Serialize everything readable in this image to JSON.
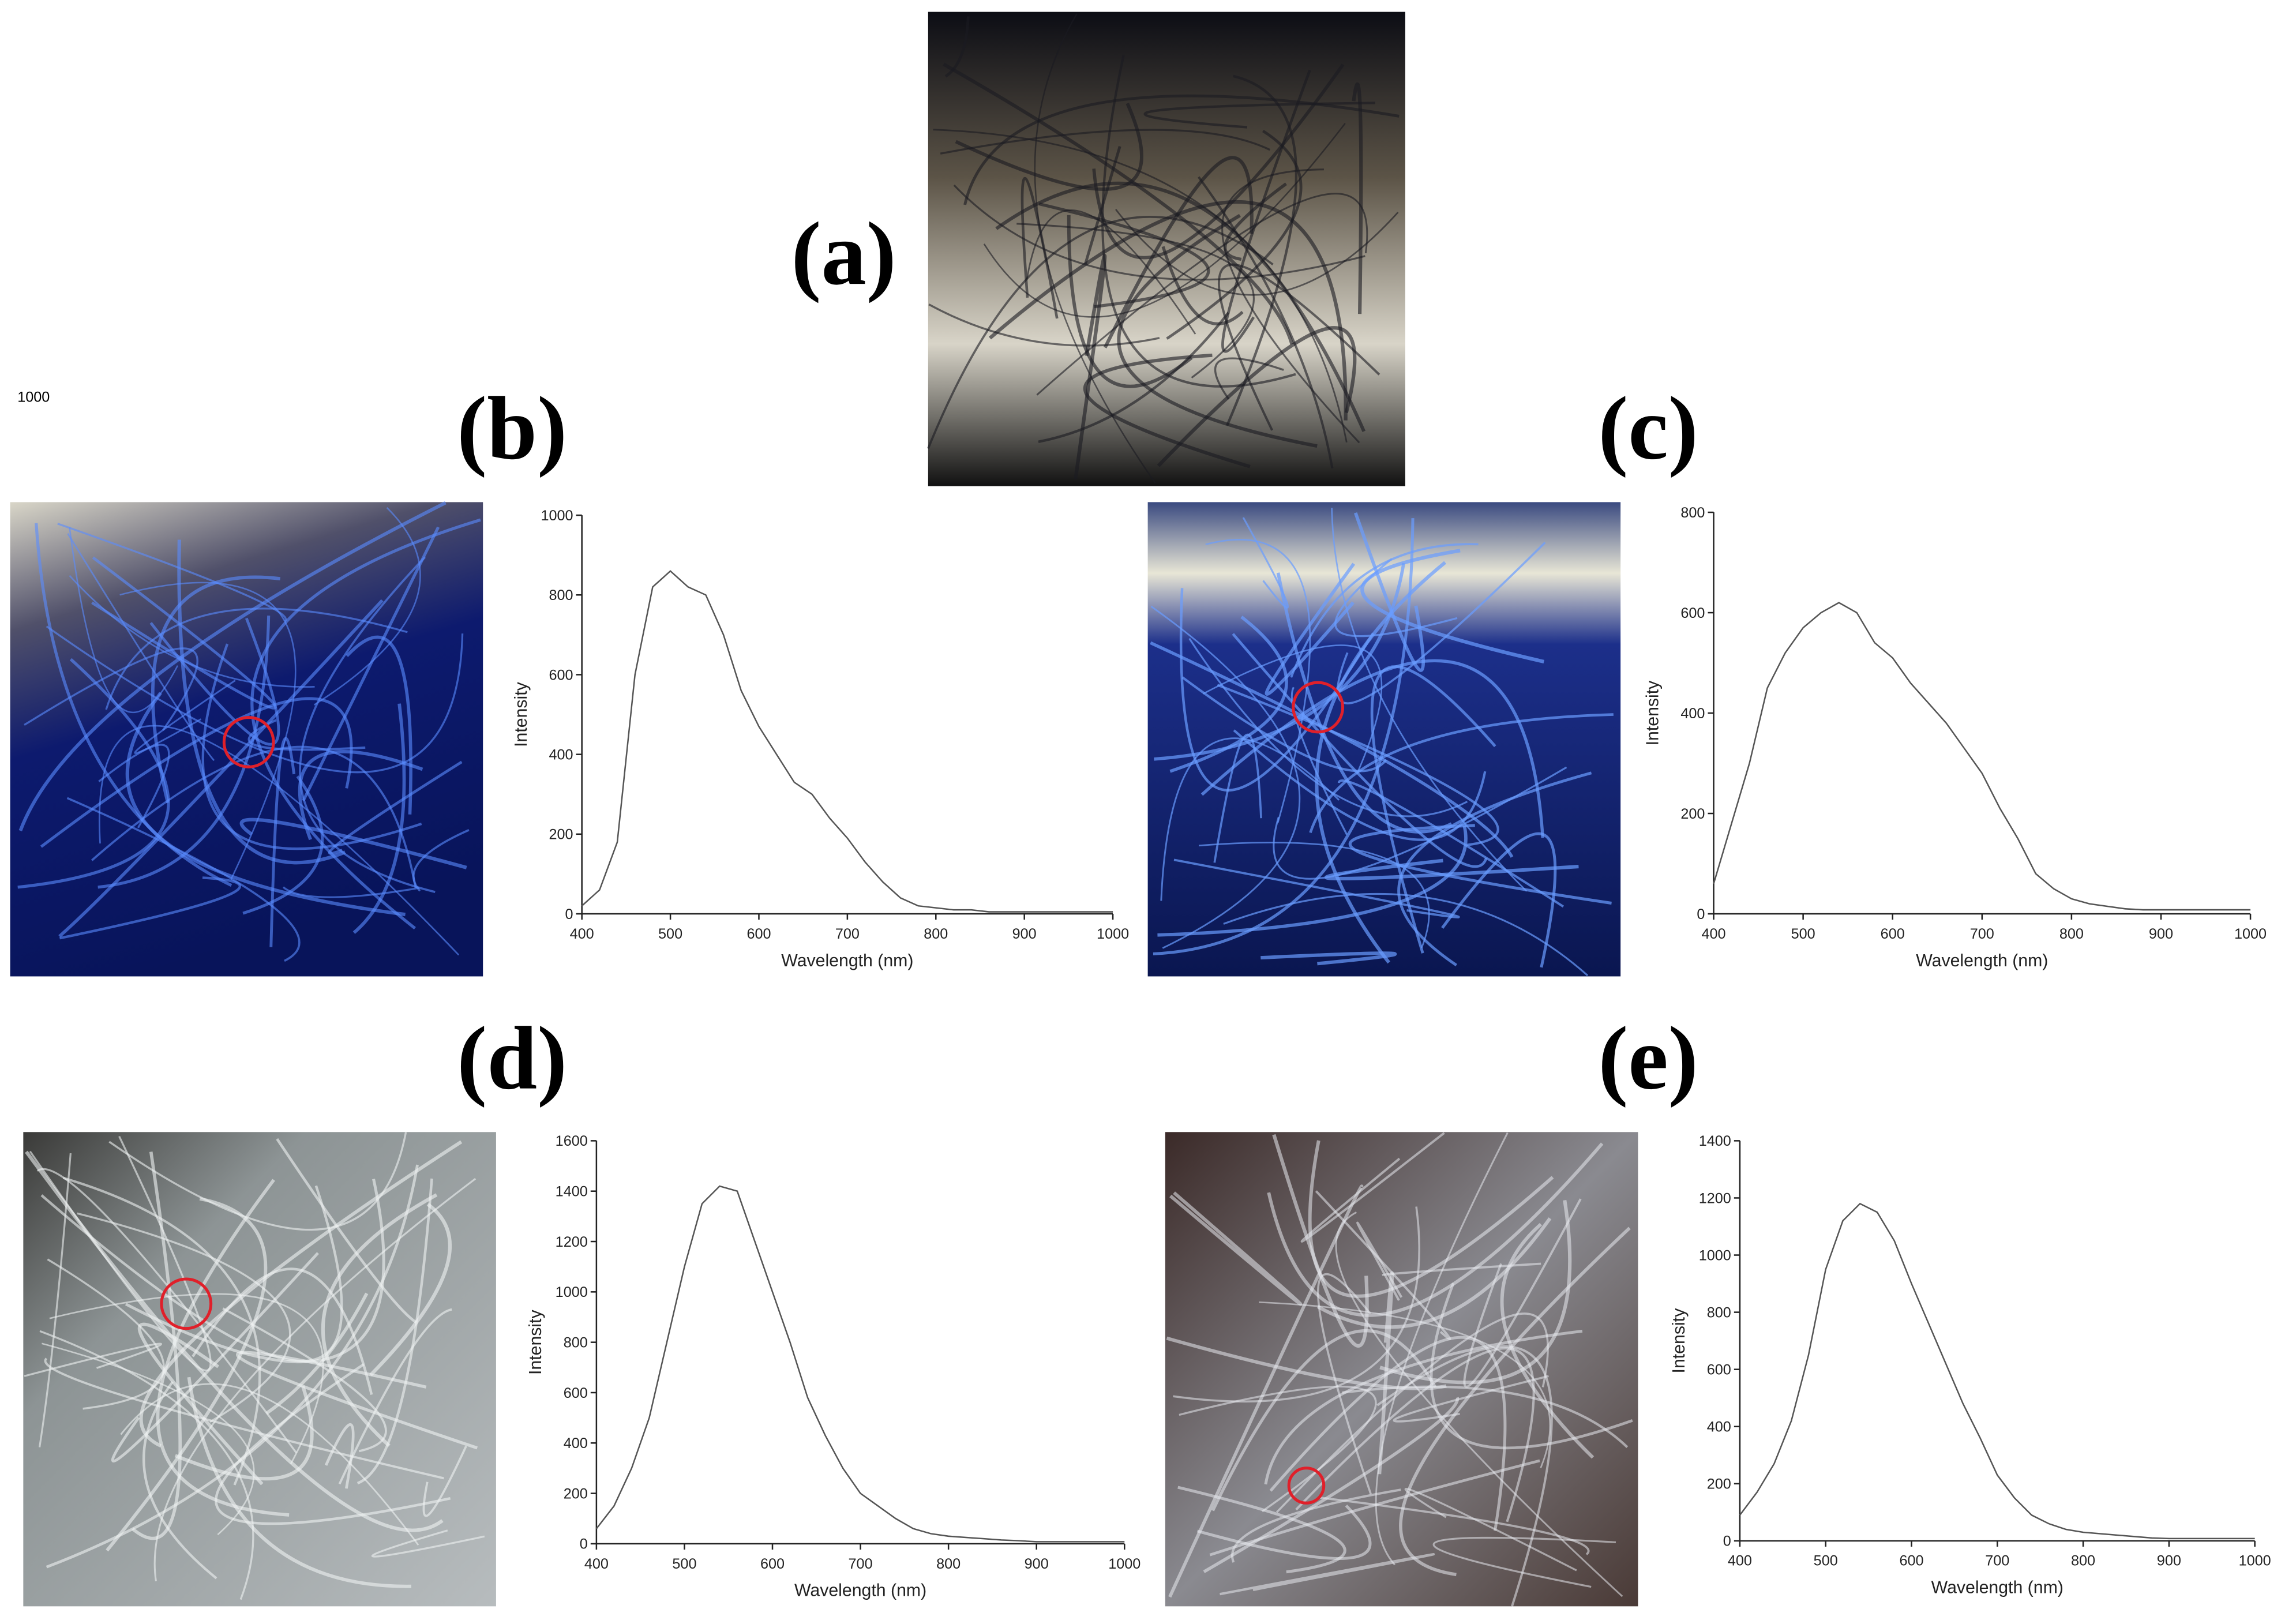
{
  "stray_text": "1000",
  "panel_labels": [
    "(a)",
    "(b)",
    "(c)",
    "(d)",
    "(e)"
  ],
  "chart_data": [
    {
      "type": "line",
      "xlabel": "Wavelength (nm)",
      "ylabel": "Intensity",
      "color": "#555555",
      "x": [
        400,
        420,
        440,
        460,
        480,
        500,
        520,
        540,
        560,
        580,
        600,
        620,
        640,
        660,
        680,
        700,
        720,
        740,
        760,
        780,
        800,
        820,
        840,
        860,
        880,
        900,
        920,
        940,
        960,
        980,
        1000
      ],
      "values": [
        20,
        60,
        180,
        600,
        820,
        860,
        820,
        800,
        700,
        560,
        470,
        400,
        330,
        300,
        240,
        190,
        130,
        80,
        40,
        20,
        15,
        10,
        10,
        5,
        5,
        5,
        5,
        5,
        5,
        5,
        5
      ],
      "xlim": [
        400,
        1000
      ],
      "ylim": [
        0,
        1000
      ],
      "xticks": [
        400,
        500,
        600,
        700,
        800,
        900,
        1000
      ],
      "yticks": [
        0,
        200,
        400,
        600,
        800,
        1000
      ]
    },
    {
      "type": "line",
      "xlabel": "Wavelength (nm)",
      "ylabel": "Intensity",
      "color": "#555555",
      "x": [
        400,
        420,
        440,
        460,
        480,
        500,
        520,
        540,
        560,
        580,
        600,
        620,
        640,
        660,
        680,
        700,
        720,
        740,
        760,
        780,
        800,
        820,
        840,
        860,
        880,
        900,
        920,
        940,
        960,
        980,
        1000
      ],
      "values": [
        60,
        180,
        300,
        450,
        520,
        570,
        600,
        620,
        600,
        540,
        510,
        460,
        420,
        380,
        330,
        280,
        210,
        150,
        80,
        50,
        30,
        20,
        15,
        10,
        8,
        8,
        8,
        8,
        8,
        8,
        8
      ],
      "xlim": [
        400,
        1000
      ],
      "ylim": [
        0,
        800
      ],
      "xticks": [
        400,
        500,
        600,
        700,
        800,
        900,
        1000
      ],
      "yticks": [
        0,
        200,
        400,
        600,
        800
      ]
    },
    {
      "type": "line",
      "xlabel": "Wavelength (nm)",
      "ylabel": "Intensity",
      "color": "#555555",
      "x": [
        400,
        420,
        440,
        460,
        480,
        500,
        520,
        540,
        560,
        580,
        600,
        620,
        640,
        660,
        680,
        700,
        720,
        740,
        760,
        780,
        800,
        820,
        840,
        860,
        880,
        900,
        920,
        940,
        960,
        980,
        1000
      ],
      "values": [
        60,
        150,
        300,
        500,
        800,
        1100,
        1350,
        1420,
        1400,
        1200,
        1000,
        800,
        580,
        430,
        300,
        200,
        150,
        100,
        60,
        40,
        30,
        25,
        20,
        15,
        12,
        8,
        8,
        8,
        8,
        8,
        8
      ],
      "xlim": [
        400,
        1000
      ],
      "ylim": [
        0,
        1600
      ],
      "xticks": [
        400,
        500,
        600,
        700,
        800,
        900,
        1000
      ],
      "yticks": [
        0,
        200,
        400,
        600,
        800,
        1000,
        1200,
        1400,
        1600
      ]
    },
    {
      "type": "line",
      "xlabel": "Wavelength (nm)",
      "ylabel": "Intensity",
      "color": "#555555",
      "x": [
        400,
        420,
        440,
        460,
        480,
        500,
        520,
        540,
        560,
        580,
        600,
        620,
        640,
        660,
        680,
        700,
        720,
        740,
        760,
        780,
        800,
        820,
        840,
        860,
        880,
        900,
        920,
        940,
        960,
        980,
        1000
      ],
      "values": [
        90,
        170,
        270,
        420,
        650,
        950,
        1120,
        1180,
        1150,
        1050,
        900,
        760,
        620,
        480,
        360,
        230,
        150,
        90,
        60,
        40,
        30,
        25,
        20,
        15,
        10,
        8,
        8,
        8,
        8,
        8,
        8
      ],
      "xlim": [
        400,
        1000
      ],
      "ylim": [
        0,
        1400
      ],
      "xticks": [
        400,
        500,
        600,
        700,
        800,
        900,
        1000
      ],
      "yticks": [
        0,
        200,
        400,
        600,
        800,
        1000,
        1200,
        1400
      ]
    }
  ]
}
